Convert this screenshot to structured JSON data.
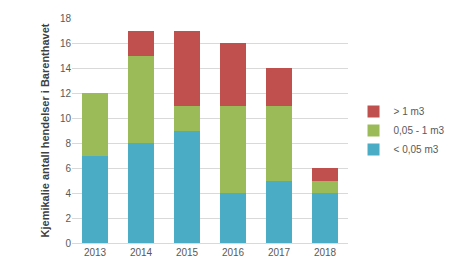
{
  "chart_data": {
    "type": "bar",
    "stacked": true,
    "y_label": "Kjemikalie antall hendelser i Barenthavet",
    "categories": [
      "2013",
      "2014",
      "2015",
      "2016",
      "2017",
      "2018"
    ],
    "series": [
      {
        "name": "< 0,05 m3",
        "color": "#4bacc6",
        "values": [
          7,
          8,
          9,
          4,
          5,
          4
        ]
      },
      {
        "name": "0,05 - 1 m3",
        "color": "#9bbb59",
        "values": [
          5,
          7,
          2,
          7,
          6,
          1
        ]
      },
      {
        "name": "> 1 m3",
        "color": "#c0504d",
        "values": [
          0,
          2,
          6,
          5,
          3,
          1
        ]
      }
    ],
    "ylim": [
      0,
      18
    ],
    "yticks": [
      0,
      2,
      4,
      6,
      8,
      10,
      12,
      14,
      16,
      18
    ],
    "grid": true,
    "legend": "right"
  }
}
